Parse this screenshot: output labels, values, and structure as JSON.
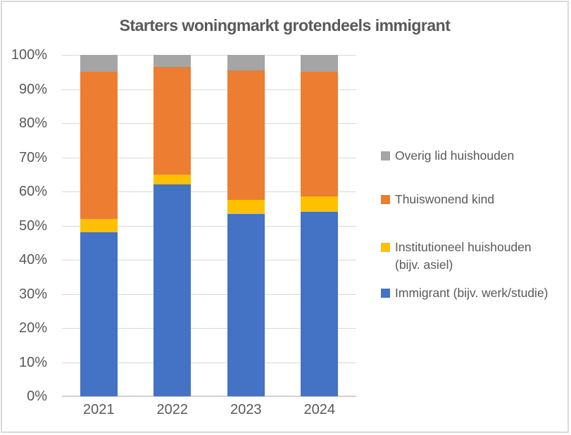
{
  "chart_data": {
    "type": "bar",
    "stacked": true,
    "units": "percent",
    "title": "Starters woningmarkt grotendeels immigrant",
    "categories": [
      "2021",
      "2022",
      "2023",
      "2024"
    ],
    "series": [
      {
        "name": "Immigrant (bijv. werk/studie)",
        "color": "#4472C4",
        "values": [
          48,
          62,
          53.5,
          54
        ]
      },
      {
        "name": "Institutioneel huishouden (bijv. asiel)",
        "color": "#FFC000",
        "values": [
          4,
          3,
          4,
          4.5
        ]
      },
      {
        "name": "Thuiswonend kind",
        "color": "#ED7D31",
        "values": [
          43,
          31.5,
          38,
          36.5
        ]
      },
      {
        "name": "Overig lid huishouden",
        "color": "#A5A5A5",
        "values": [
          5,
          3.5,
          4.5,
          5
        ]
      }
    ],
    "legend_order": [
      "Overig lid huishouden",
      "Thuiswonend kind",
      "Institutioneel huishouden (bijv. asiel)",
      "Immigrant (bijv. werk/studie)"
    ],
    "y_ticks": [
      "100%",
      "90%",
      "80%",
      "70%",
      "60%",
      "50%",
      "40%",
      "30%",
      "20%",
      "10%",
      "0%"
    ],
    "ylim": [
      0,
      100
    ],
    "grid": true,
    "legend_position": "right",
    "colors": {
      "grid_line": "#D9D9D9",
      "axis_line": "#D1D1D1",
      "text": "#595959",
      "frame_border": "#D9D9D9",
      "background": "#FFFFFF"
    }
  }
}
